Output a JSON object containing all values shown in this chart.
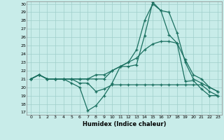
{
  "xlabel": "Humidex (Indice chaleur)",
  "background_color": "#c8ece9",
  "line_color": "#1a7060",
  "grid_color": "#9fcfca",
  "xlim": [
    -0.5,
    23.5
  ],
  "ylim": [
    16.7,
    30.3
  ],
  "yticks": [
    17,
    18,
    19,
    20,
    21,
    22,
    23,
    24,
    25,
    26,
    27,
    28,
    29,
    30
  ],
  "xticks": [
    0,
    1,
    2,
    3,
    4,
    5,
    6,
    7,
    8,
    9,
    10,
    11,
    12,
    13,
    14,
    15,
    16,
    17,
    18,
    19,
    20,
    21,
    22,
    23
  ],
  "lines": [
    {
      "x": [
        0,
        1,
        2,
        3,
        4,
        5,
        6,
        7,
        8,
        9,
        10,
        11,
        12,
        13,
        14,
        15,
        16,
        17,
        18,
        19,
        20,
        21,
        22,
        23
      ],
      "y": [
        21,
        21.5,
        21,
        21,
        21,
        20.5,
        20,
        17.2,
        17.8,
        19.0,
        20.5,
        22.5,
        22.5,
        22.7,
        26.2,
        30.2,
        29.2,
        26.3,
        25.3,
        20.7,
        20.8,
        19.8,
        19.0,
        19.0
      ]
    },
    {
      "x": [
        0,
        1,
        2,
        3,
        4,
        5,
        6,
        7,
        8,
        9,
        10,
        11,
        12,
        13,
        14,
        15,
        16,
        17,
        18,
        19,
        20,
        21,
        22,
        23
      ],
      "y": [
        21,
        21.5,
        21,
        21,
        21,
        21,
        20.5,
        20.5,
        19.5,
        19.8,
        20.3,
        20.3,
        20.3,
        20.3,
        20.3,
        20.3,
        20.3,
        20.3,
        20.3,
        20.3,
        20.3,
        20.3,
        19.5,
        19.0
      ]
    },
    {
      "x": [
        0,
        1,
        2,
        3,
        4,
        5,
        6,
        7,
        8,
        9,
        10,
        11,
        12,
        13,
        14,
        15,
        16,
        17,
        18,
        19,
        20,
        21,
        22,
        23
      ],
      "y": [
        21,
        21.5,
        21,
        21,
        21,
        21,
        21,
        21,
        21.5,
        21.5,
        22.0,
        22.5,
        23.0,
        23.5,
        24.5,
        25.2,
        25.5,
        25.5,
        25.3,
        23.3,
        21.5,
        21.0,
        20.0,
        19.5
      ]
    },
    {
      "x": [
        0,
        1,
        2,
        3,
        4,
        5,
        6,
        7,
        8,
        9,
        10,
        11,
        12,
        13,
        14,
        15,
        16,
        17,
        18,
        19,
        20,
        21,
        22,
        23
      ],
      "y": [
        21,
        21.5,
        21,
        21,
        21,
        21,
        21,
        21,
        21,
        21,
        22.0,
        22.5,
        23.0,
        24.5,
        28.0,
        30.0,
        29.2,
        29.0,
        26.5,
        23.0,
        21.0,
        20.5,
        20.0,
        19.5
      ]
    }
  ]
}
